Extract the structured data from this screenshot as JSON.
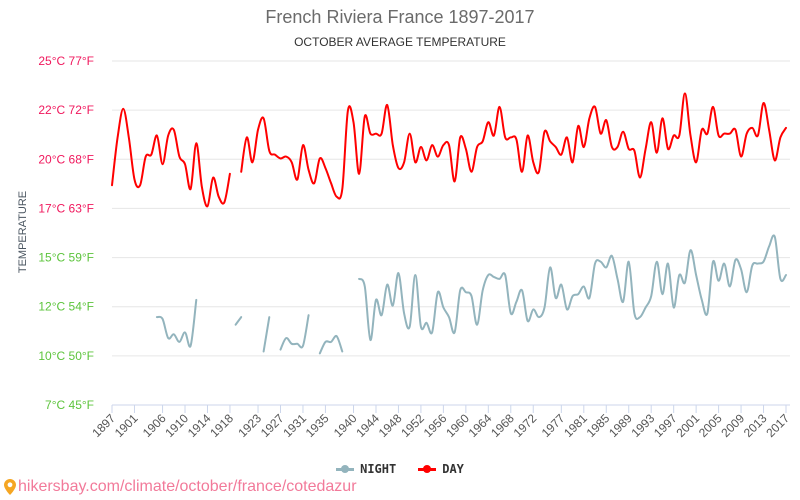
{
  "chart_data": {
    "type": "line",
    "title": "French Riviera France 1897-2017",
    "subtitle": "OCTOBER AVERAGE TEMPERATURE",
    "ylabel": "TEMPERATURE",
    "xlabel": "",
    "x_start": 1897,
    "x_end": 2017,
    "ylim": [
      7,
      25
    ],
    "grid": true,
    "legend_placement": "bottom",
    "y_ticks": [
      {
        "value": 25,
        "label": "25°C 77°F",
        "color": "#f0185d"
      },
      {
        "value": 22,
        "label": "22°C 72°F",
        "color": "#f0185d"
      },
      {
        "value": 20,
        "label": "20°C 68°F",
        "color": "#f0185d"
      },
      {
        "value": 17,
        "label": "17°C 63°F",
        "color": "#f0185d"
      },
      {
        "value": 15,
        "label": "15°C 59°F",
        "color": "#5cc43c"
      },
      {
        "value": 12,
        "label": "12°C 54°F",
        "color": "#5cc43c"
      },
      {
        "value": 10,
        "label": "10°C 50°F",
        "color": "#5cc43c"
      },
      {
        "value": 7,
        "label": "7°C 45°F",
        "color": "#5cc43c"
      }
    ],
    "x_ticks": [
      "1897",
      "1901",
      "1906",
      "1910",
      "1914",
      "1918",
      "1923",
      "1927",
      "1931",
      "1935",
      "1940",
      "1944",
      "1948",
      "1952",
      "1956",
      "1960",
      "1964",
      "1968",
      "1972",
      "1977",
      "1981",
      "1985",
      "1989",
      "1993",
      "1997",
      "2001",
      "2005",
      "2009",
      "2013",
      "2017"
    ],
    "series": [
      {
        "name": "NIGHT",
        "color": "#93b4bd",
        "values": [
          null,
          null,
          null,
          null,
          null,
          null,
          null,
          null,
          11.6,
          11.5,
          10.5,
          10.7,
          10.3,
          10.8,
          10.1,
          12.5,
          null,
          null,
          null,
          null,
          null,
          null,
          11.2,
          11.6,
          null,
          null,
          null,
          9.8,
          11.6,
          null,
          9.9,
          10.5,
          10.2,
          10.2,
          10.1,
          11.7,
          null,
          9.7,
          10.3,
          10.3,
          10.6,
          9.8,
          null,
          null,
          13.6,
          13.2,
          10.4,
          12.5,
          11.7,
          13.3,
          12.2,
          13.9,
          11.8,
          11.1,
          13.8,
          11.1,
          11.3,
          10.8,
          12.9,
          12.1,
          11.6,
          10.8,
          13.0,
          12.9,
          12.7,
          11.2,
          13.0,
          13.8,
          13.7,
          13.6,
          13.8,
          11.8,
          12.4,
          13.0,
          11.4,
          12.0,
          11.6,
          12.1,
          14.2,
          12.6,
          13.3,
          12.0,
          12.7,
          12.8,
          13.2,
          12.6,
          14.4,
          14.5,
          14.2,
          14.8,
          13.6,
          12.4,
          14.5,
          11.8,
          11.6,
          12.1,
          12.7,
          14.5,
          12.8,
          14.4,
          12.1,
          13.8,
          13.4,
          15.1,
          13.8,
          12.5,
          11.8,
          14.5,
          13.5,
          14.4,
          13.2,
          14.6,
          14.1,
          12.9,
          14.3,
          14.4,
          14.5,
          15.3,
          15.8,
          13.6,
          13.8
        ]
      },
      {
        "name": "DAY",
        "color": "#ff0000",
        "values": [
          18.5,
          21.0,
          22.5,
          21.0,
          18.8,
          18.5,
          20.0,
          20.1,
          21.1,
          19.6,
          21.1,
          21.4,
          20.0,
          19.6,
          18.3,
          20.7,
          18.4,
          17.4,
          18.9,
          17.9,
          17.6,
          19.1,
          null,
          19.2,
          21.0,
          19.7,
          21.4,
          22.0,
          20.3,
          20.1,
          19.9,
          20.0,
          19.7,
          18.8,
          20.6,
          19.3,
          18.6,
          19.9,
          19.4,
          18.6,
          17.9,
          18.3,
          22.4,
          21.8,
          19.1,
          22.1,
          21.2,
          21.2,
          21.2,
          22.7,
          20.6,
          19.4,
          19.7,
          21.2,
          19.7,
          20.5,
          19.8,
          20.6,
          20.0,
          20.6,
          20.6,
          18.7,
          21.0,
          20.4,
          19.2,
          20.5,
          20.8,
          21.8,
          21.1,
          22.6,
          21.0,
          21.0,
          20.9,
          19.2,
          21.1,
          19.7,
          19.2,
          21.3,
          20.8,
          20.5,
          20.1,
          21.0,
          19.7,
          21.6,
          20.5,
          22.0,
          22.6,
          21.2,
          21.9,
          20.5,
          20.5,
          21.3,
          20.4,
          20.3,
          18.9,
          20.4,
          21.8,
          20.2,
          22.0,
          20.4,
          21.1,
          21.1,
          23.3,
          21.1,
          19.7,
          21.4,
          21.2,
          22.6,
          21.1,
          21.2,
          21.2,
          21.4,
          20.0,
          21.2,
          21.5,
          21.1,
          22.8,
          21.4,
          19.8,
          21.0,
          21.5
        ]
      }
    ]
  },
  "footer": {
    "url": "hikersbay.com/climate/october/france/cotedazur",
    "icon": "map-pin-icon",
    "icon_color": "#f5a623"
  }
}
